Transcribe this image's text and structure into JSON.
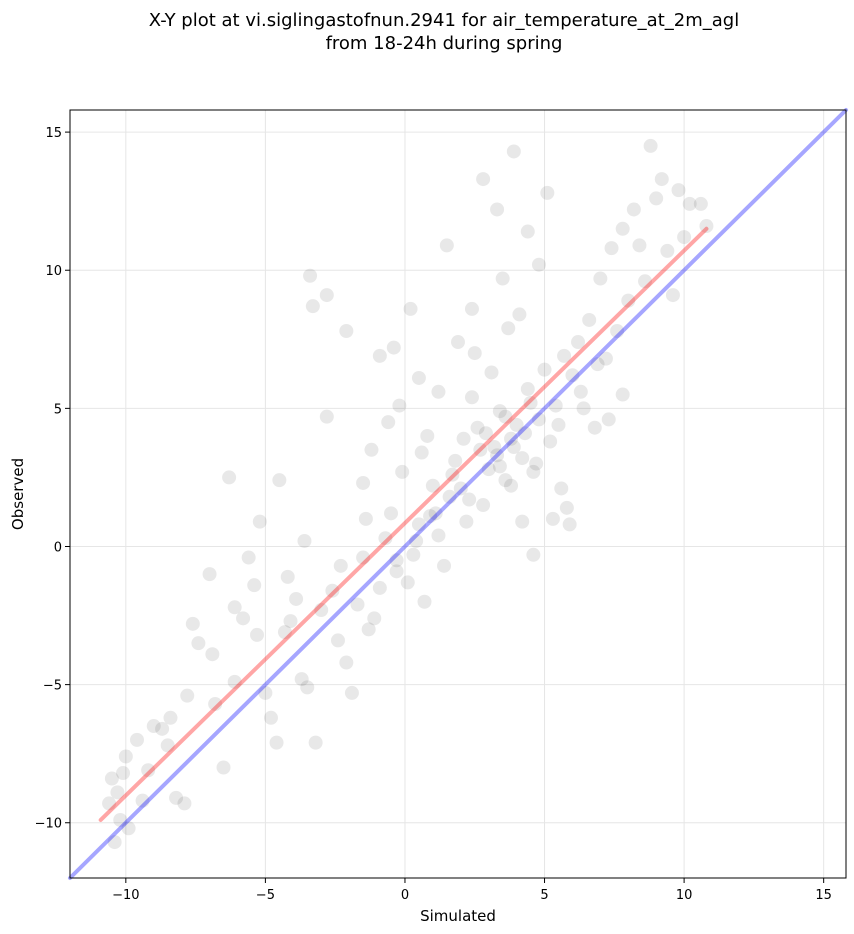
{
  "chart_data": {
    "type": "scatter",
    "title_line1": "X-Y plot at vi.siglingastofnun.2941 for air_temperature_at_2m_agl",
    "title_line2": "from 18-24h during spring",
    "xlabel": "Simulated",
    "ylabel": "Observed",
    "xlim": [
      -12.0,
      15.8
    ],
    "ylim": [
      -12.0,
      15.8
    ],
    "x_ticks": [
      -10,
      -5,
      0,
      5,
      10,
      15
    ],
    "y_ticks": [
      -10,
      -5,
      0,
      5,
      10,
      15
    ],
    "x_tick_labels": [
      "−10",
      "−5",
      "0",
      "5",
      "10",
      "15"
    ],
    "y_tick_labels": [
      "−10",
      "−5",
      "0",
      "5",
      "10",
      "15"
    ],
    "grid": true,
    "point_color": "#000000",
    "point_opacity": 0.09,
    "points": [
      [
        -10.5,
        -8.4
      ],
      [
        -10.3,
        -8.9
      ],
      [
        -10.1,
        -8.2
      ],
      [
        -10.6,
        -9.3
      ],
      [
        -10.2,
        -9.9
      ],
      [
        -9.9,
        -10.2
      ],
      [
        -10.4,
        -10.7
      ],
      [
        -10.0,
        -7.6
      ],
      [
        -9.6,
        -7.0
      ],
      [
        -9.4,
        -9.2
      ],
      [
        -9.0,
        -6.5
      ],
      [
        -8.7,
        -6.6
      ],
      [
        -8.4,
        -6.2
      ],
      [
        -8.2,
        -9.1
      ],
      [
        -7.9,
        -9.3
      ],
      [
        -7.6,
        -2.8
      ],
      [
        -7.4,
        -3.5
      ],
      [
        -7.0,
        -1.0
      ],
      [
        -6.8,
        -5.7
      ],
      [
        -6.5,
        -8.0
      ],
      [
        -6.3,
        2.5
      ],
      [
        -6.1,
        -4.9
      ],
      [
        -5.8,
        -2.6
      ],
      [
        -5.6,
        -0.4
      ],
      [
        -5.4,
        -1.4
      ],
      [
        -5.2,
        0.9
      ],
      [
        -5.0,
        -5.3
      ],
      [
        -4.8,
        -6.2
      ],
      [
        -4.6,
        -7.1
      ],
      [
        -4.5,
        2.4
      ],
      [
        -4.3,
        -3.1
      ],
      [
        -4.1,
        -2.7
      ],
      [
        -3.9,
        -1.9
      ],
      [
        -3.7,
        -4.8
      ],
      [
        -3.5,
        -5.1
      ],
      [
        -3.3,
        8.7
      ],
      [
        -3.4,
        9.8
      ],
      [
        -3.2,
        -7.1
      ],
      [
        -3.0,
        -2.3
      ],
      [
        -2.8,
        4.7
      ],
      [
        -2.6,
        -1.6
      ],
      [
        -2.4,
        -3.4
      ],
      [
        -2.1,
        -4.2
      ],
      [
        -1.9,
        -5.3
      ],
      [
        -1.7,
        -2.1
      ],
      [
        -1.5,
        -0.4
      ],
      [
        -1.3,
        -3.0
      ],
      [
        -1.1,
        -2.6
      ],
      [
        -1.5,
        2.3
      ],
      [
        -1.2,
        3.5
      ],
      [
        -0.9,
        -1.5
      ],
      [
        -0.7,
        0.3
      ],
      [
        -0.5,
        1.2
      ],
      [
        -0.3,
        -0.9
      ],
      [
        -0.1,
        2.7
      ],
      [
        0.1,
        -1.3
      ],
      [
        0.3,
        -0.3
      ],
      [
        0.5,
        0.8
      ],
      [
        0.7,
        -2.0
      ],
      [
        0.9,
        1.1
      ],
      [
        -0.6,
        4.5
      ],
      [
        -0.4,
        7.2
      ],
      [
        0.2,
        8.6
      ],
      [
        0.5,
        6.1
      ],
      [
        0.8,
        4.0
      ],
      [
        1.0,
        2.2
      ],
      [
        1.2,
        0.4
      ],
      [
        1.4,
        -0.7
      ],
      [
        1.6,
        1.8
      ],
      [
        1.8,
        3.1
      ],
      [
        2.0,
        2.1
      ],
      [
        2.2,
        0.9
      ],
      [
        2.4,
        5.4
      ],
      [
        2.6,
        4.3
      ],
      [
        2.8,
        1.5
      ],
      [
        3.0,
        2.8
      ],
      [
        3.2,
        3.6
      ],
      [
        3.4,
        4.9
      ],
      [
        3.6,
        2.4
      ],
      [
        3.8,
        3.9
      ],
      [
        1.5,
        10.9
      ],
      [
        2.8,
        13.3
      ],
      [
        3.3,
        12.2
      ],
      [
        3.9,
        14.3
      ],
      [
        4.4,
        11.4
      ],
      [
        4.8,
        10.2
      ],
      [
        5.1,
        12.8
      ],
      [
        3.5,
        9.7
      ],
      [
        2.4,
        8.6
      ],
      [
        1.9,
        7.4
      ],
      [
        4.0,
        4.4
      ],
      [
        4.2,
        3.2
      ],
      [
        4.4,
        5.7
      ],
      [
        4.6,
        2.7
      ],
      [
        4.8,
        4.6
      ],
      [
        5.0,
        6.4
      ],
      [
        5.2,
        3.8
      ],
      [
        5.4,
        5.1
      ],
      [
        5.6,
        2.1
      ],
      [
        5.8,
        1.4
      ],
      [
        6.0,
        6.2
      ],
      [
        6.2,
        7.4
      ],
      [
        6.4,
        5.0
      ],
      [
        6.6,
        8.2
      ],
      [
        6.8,
        4.3
      ],
      [
        7.0,
        9.7
      ],
      [
        7.2,
        6.8
      ],
      [
        7.4,
        10.8
      ],
      [
        7.6,
        7.8
      ],
      [
        7.8,
        11.5
      ],
      [
        8.0,
        8.9
      ],
      [
        8.2,
        12.2
      ],
      [
        8.4,
        10.9
      ],
      [
        8.6,
        9.6
      ],
      [
        8.8,
        14.5
      ],
      [
        9.0,
        12.6
      ],
      [
        9.2,
        13.3
      ],
      [
        9.4,
        10.7
      ],
      [
        9.6,
        9.1
      ],
      [
        9.8,
        12.9
      ],
      [
        10.0,
        11.2
      ],
      [
        10.2,
        12.4
      ],
      [
        10.6,
        12.4
      ],
      [
        10.8,
        11.6
      ],
      [
        7.3,
        4.6
      ],
      [
        7.8,
        5.5
      ],
      [
        5.9,
        0.8
      ],
      [
        4.6,
        -0.3
      ],
      [
        4.2,
        0.9
      ],
      [
        5.3,
        1.0
      ],
      [
        3.1,
        6.3
      ],
      [
        3.7,
        7.9
      ],
      [
        4.1,
        8.4
      ],
      [
        2.5,
        7.0
      ],
      [
        1.2,
        5.6
      ],
      [
        0.6,
        3.4
      ],
      [
        -0.2,
        5.1
      ],
      [
        -0.9,
        6.9
      ],
      [
        -2.1,
        7.8
      ],
      [
        -2.8,
        9.1
      ],
      [
        -1.4,
        1.0
      ],
      [
        -2.3,
        -0.7
      ],
      [
        -3.6,
        0.2
      ],
      [
        -4.2,
        -1.1
      ],
      [
        -5.3,
        -3.2
      ],
      [
        -6.1,
        -2.2
      ],
      [
        -6.9,
        -3.9
      ],
      [
        -7.8,
        -5.4
      ],
      [
        -8.5,
        -7.2
      ],
      [
        -9.2,
        -8.1
      ],
      [
        2.9,
        4.1
      ],
      [
        3.3,
        3.3
      ],
      [
        3.6,
        4.7
      ],
      [
        3.9,
        3.6
      ],
      [
        4.3,
        4.1
      ],
      [
        4.5,
        5.2
      ],
      [
        3.4,
        2.9
      ],
      [
        2.7,
        3.5
      ],
      [
        3.8,
        2.2
      ],
      [
        4.7,
        3.0
      ],
      [
        1.1,
        1.2
      ],
      [
        1.7,
        2.6
      ],
      [
        0.4,
        0.2
      ],
      [
        -0.3,
        -0.5
      ],
      [
        2.3,
        1.7
      ],
      [
        2.1,
        3.9
      ],
      [
        5.5,
        4.4
      ],
      [
        5.7,
        6.9
      ],
      [
        6.3,
        5.6
      ],
      [
        6.9,
        6.6
      ]
    ],
    "series": [
      {
        "name": "",
        "color": "#ff0000",
        "opacity": 0.35,
        "points": [
          [
            -10.9,
            -9.9
          ],
          [
            10.8,
            11.5
          ]
        ]
      },
      {
        "name": "",
        "color": "#0000ff",
        "opacity": 0.35,
        "points": [
          [
            -12.0,
            -12.0
          ],
          [
            15.8,
            15.8
          ]
        ]
      }
    ]
  }
}
